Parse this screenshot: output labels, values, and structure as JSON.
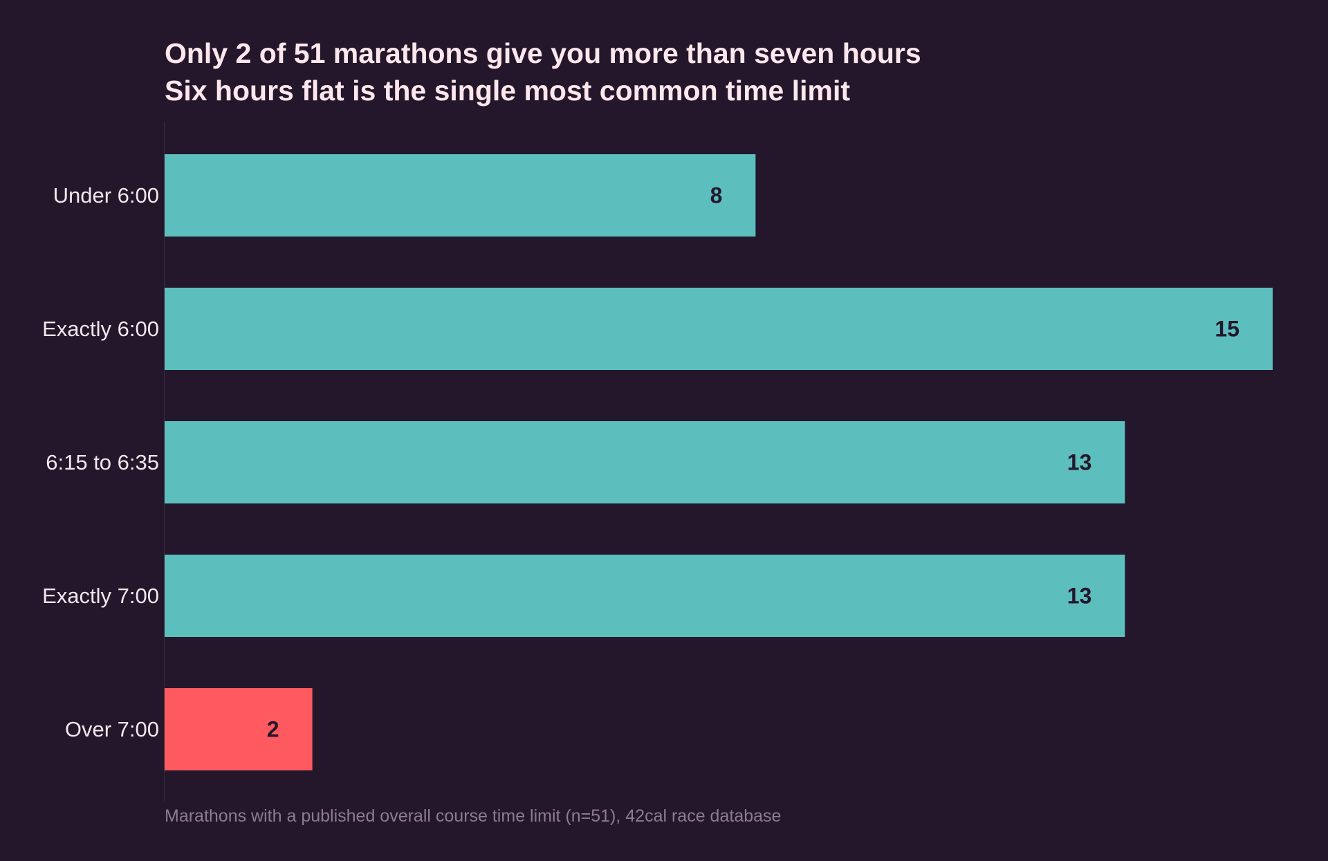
{
  "chart_data": {
    "type": "bar",
    "orientation": "horizontal",
    "title": "Only 2 of 51 marathons give you more than seven hours",
    "subtitle": "Six hours flat is the single most common time limit",
    "categories": [
      "Under 6:00",
      "Exactly 6:00",
      "6:15 to 6:35",
      "Exactly 7:00",
      "Over 7:00"
    ],
    "values": [
      8,
      15,
      13,
      13,
      2
    ],
    "value_labels": [
      "8",
      "15",
      "13",
      "13",
      "2"
    ],
    "highlight_index": 4,
    "xlim": [
      0,
      15
    ],
    "grid": false,
    "legend": "none",
    "source": "Marathons with a published overall course time limit (n=51), 42cal race database",
    "colors": {
      "bar": "#5dbfbd",
      "highlight": "#ff5a5f",
      "background": "#24172b",
      "title": "#fde7ec",
      "category_label": "#f4e6ec",
      "value_label": "#24172b",
      "source": "#8e7a94",
      "axis_line": "#3a2a42"
    }
  }
}
